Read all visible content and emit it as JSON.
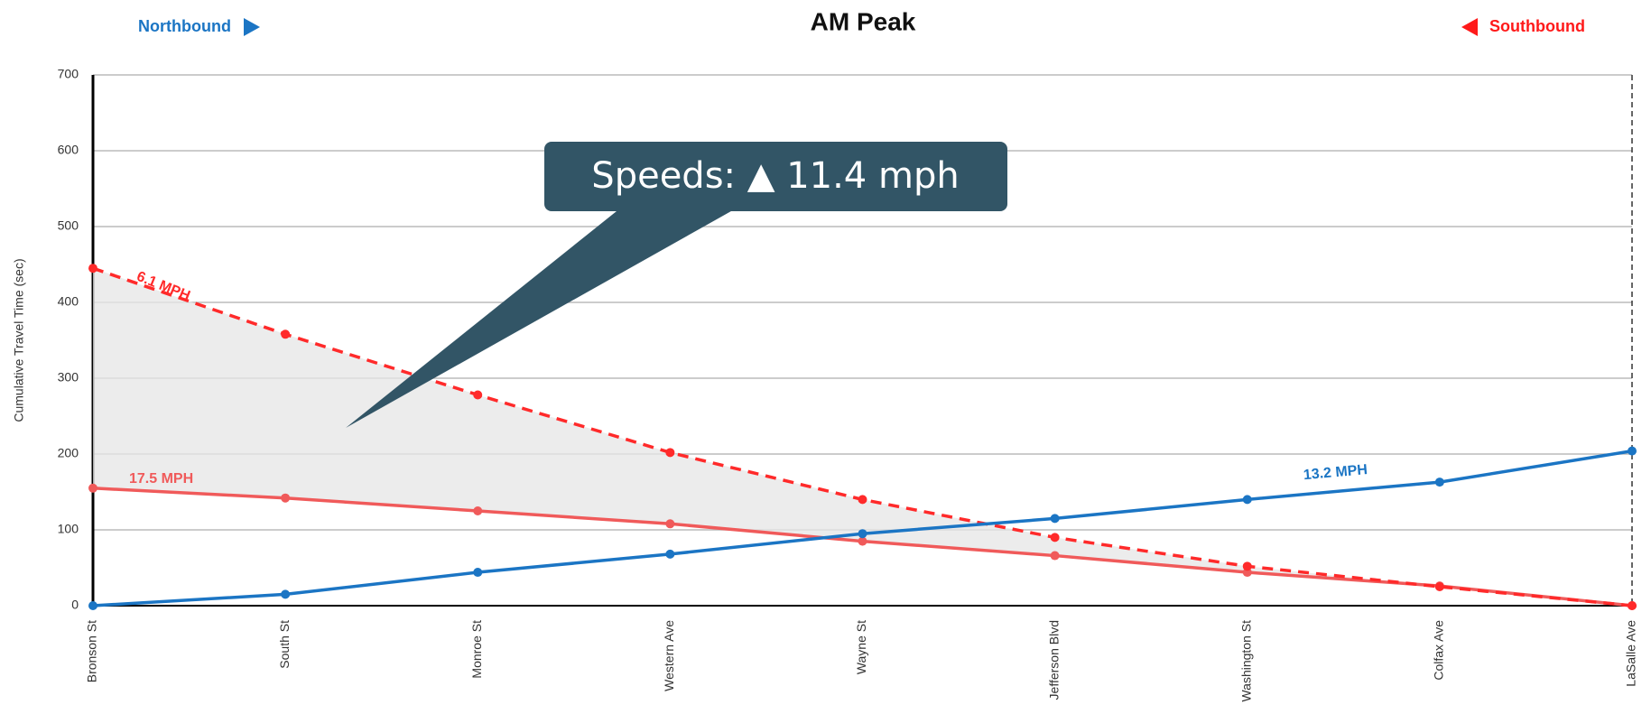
{
  "chart_data": {
    "type": "line",
    "title": "AM Peak",
    "direction_labels": [
      "Northbound",
      "Southbound"
    ],
    "ylabel": "Cumulative Travel Time (sec)",
    "categories": [
      "Bronson St",
      "South St",
      "Monroe St",
      "Western Ave",
      "Wayne St",
      "Jefferson Blvd",
      "Washington St",
      "Colfax Ave",
      "LaSalle Ave"
    ],
    "series": [
      {
        "name": "13.2 MPH",
        "color": "#1b75c4",
        "dashed": false,
        "values": [
          0,
          15,
          44,
          68,
          95,
          115,
          140,
          163,
          204
        ]
      },
      {
        "name": "6.1 MPH",
        "color": "#ff2a2a",
        "dashed": true,
        "values": [
          445,
          358,
          278,
          202,
          140,
          90,
          52,
          25,
          0
        ]
      },
      {
        "name": "17.5 MPH",
        "color": "#f05a5a",
        "dashed": false,
        "values": [
          155,
          142,
          125,
          108,
          85,
          66,
          44,
          26,
          0
        ]
      }
    ],
    "shaded_between": [
      1,
      2
    ],
    "callout": "Speeds: ▲ 11.4 mph",
    "ylim": [
      0,
      700
    ],
    "yticks": [
      0,
      100,
      200,
      300,
      400,
      500,
      600,
      700
    ],
    "grid": true
  }
}
